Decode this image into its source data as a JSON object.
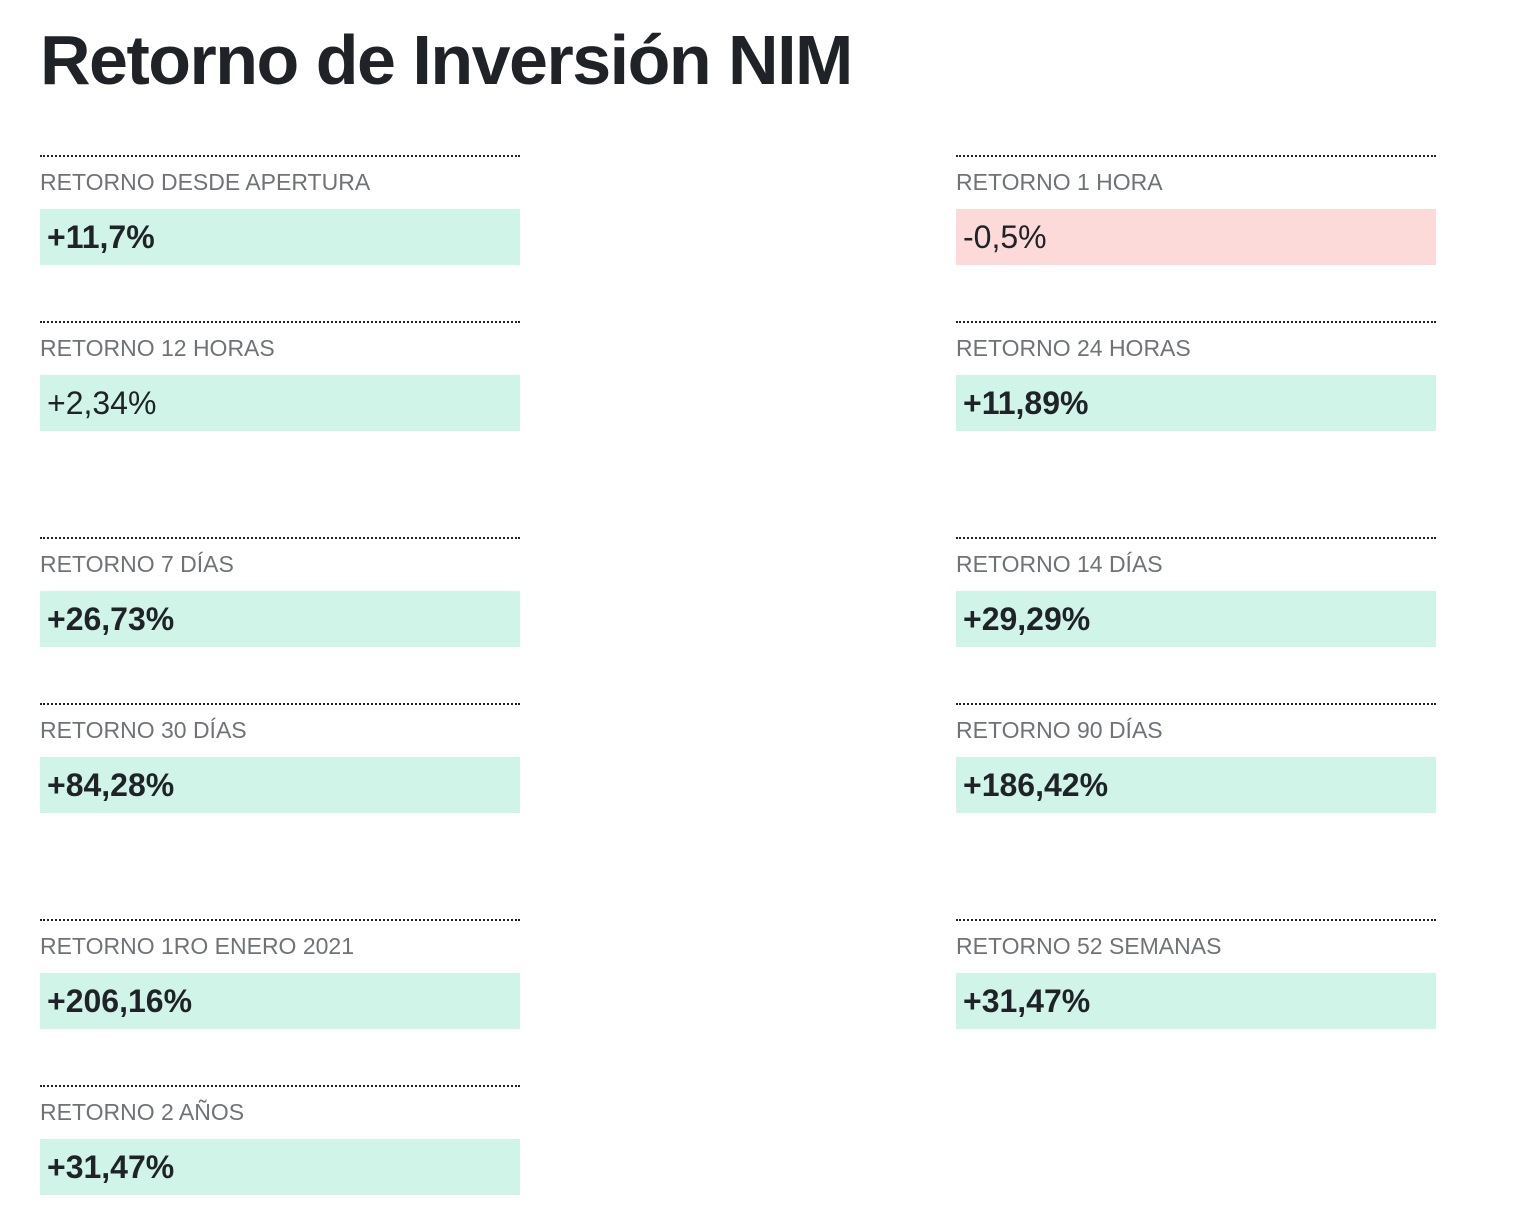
{
  "title": "Retorno de Inversión NIM",
  "colors": {
    "positive_bg": "#d1f4e8",
    "negative_bg": "#fddada",
    "label_text": "#6f7378",
    "value_text": "#1f2328"
  },
  "metrics": [
    {
      "label": "RETORNO DESDE APERTURA",
      "value": "+11,7%",
      "trend": "positive",
      "emphasis": "bold"
    },
    {
      "label": "RETORNO 1 HORA",
      "value": "-0,5%",
      "trend": "negative",
      "emphasis": "regular"
    },
    {
      "label": "RETORNO 12 HORAS",
      "value": "+2,34%",
      "trend": "positive",
      "emphasis": "regular"
    },
    {
      "label": "RETORNO 24 HORAS",
      "value": "+11,89%",
      "trend": "positive",
      "emphasis": "bold"
    },
    {
      "label": "RETORNO 7 DÍAS",
      "value": "+26,73%",
      "trend": "positive",
      "emphasis": "bold"
    },
    {
      "label": "RETORNO 14 DÍAS",
      "value": "+29,29%",
      "trend": "positive",
      "emphasis": "bold"
    },
    {
      "label": "RETORNO 30 DÍAS",
      "value": "+84,28%",
      "trend": "positive",
      "emphasis": "bold"
    },
    {
      "label": "RETORNO 90 DÍAS",
      "value": "+186,42%",
      "trend": "positive",
      "emphasis": "bold"
    },
    {
      "label": "RETORNO 1RO ENERO 2021",
      "value": "+206,16%",
      "trend": "positive",
      "emphasis": "bold"
    },
    {
      "label": "RETORNO 52 SEMANAS",
      "value": "+31,47%",
      "trend": "positive",
      "emphasis": "bold"
    },
    {
      "label": "RETORNO 2 AÑOS",
      "value": "+31,47%",
      "trend": "positive",
      "emphasis": "bold"
    }
  ]
}
